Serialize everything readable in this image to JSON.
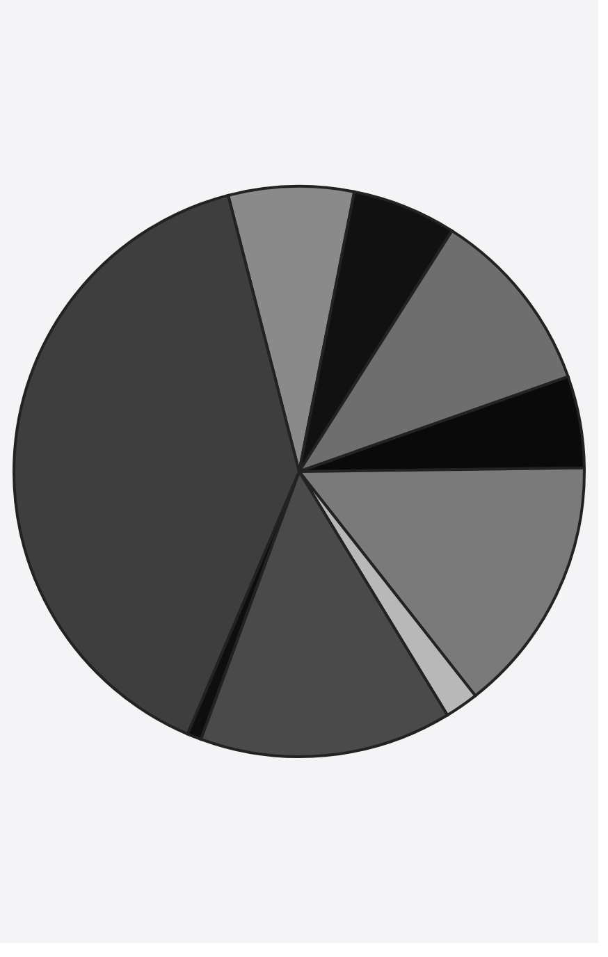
{
  "chart_data": {
    "type": "pie",
    "categories": [
      null,
      null,
      null,
      null,
      null,
      null,
      null,
      null,
      null
    ],
    "values": [
      7.1,
      5.9,
      10.6,
      5.2,
      14.6,
      1.9,
      14.3,
      0.8,
      39.6
    ],
    "colors": [
      "#8a8a8a",
      "#111111",
      "#6e6e6e",
      "#0a0a0a",
      "#7a7a7a",
      "#b8b8b8",
      "#4a4a4a",
      "#0e0e0e",
      "#3e3e3e"
    ],
    "legend": false
  }
}
